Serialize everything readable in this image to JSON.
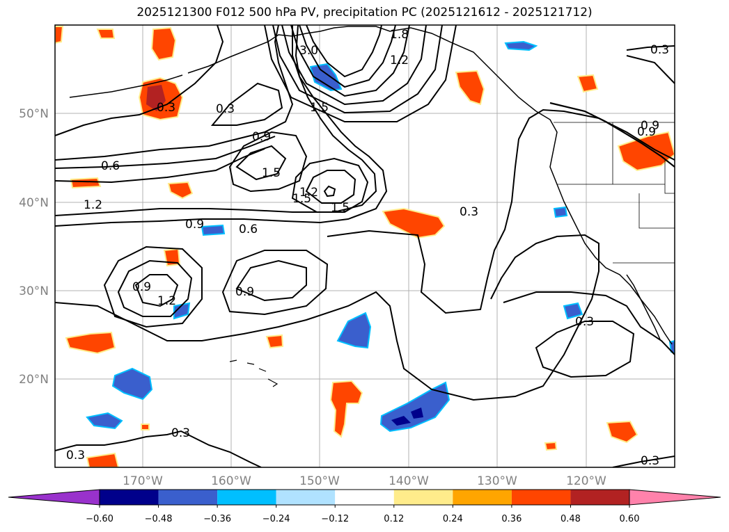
{
  "title": "2025121300 F012 500 hPa PV, precipitation PC (2025121612 - 2025121712)",
  "map": {
    "lat_labels": [
      "50°N",
      "40°N",
      "30°N",
      "20°N"
    ],
    "lon_labels": [
      "170°W",
      "160°W",
      "150°W",
      "140°W",
      "130°W",
      "120°W"
    ],
    "contour_labels": [
      "0.3",
      "0.3",
      "1.5",
      "1.5",
      "1.5",
      "1.5",
      "0.9",
      "0.9",
      "0.9",
      "0.9",
      "0.6",
      "0.6",
      "1.2",
      "1.2",
      "1.2",
      "0.3",
      "0.3",
      "0.3",
      "0.3",
      "0.3",
      "0.3",
      "0.9",
      "0.9",
      "3.0",
      "1.2",
      "1.8"
    ]
  },
  "colorbar": {
    "ticks": [
      "−0.60",
      "−0.48",
      "−0.36",
      "−0.24",
      "−0.12",
      "0.12",
      "0.24",
      "0.36",
      "0.48",
      "0.60"
    ],
    "colors": [
      "#9932cc",
      "#00008b",
      "#3a5fcd",
      "#00bfff",
      "#b0e2ff",
      "#ffffff",
      "#ffec8b",
      "#ffa500",
      "#ff4500",
      "#b22222",
      "#ff82ab"
    ]
  },
  "colors": {
    "grid": "#b0b0b0",
    "contour": "#000000",
    "neg_light": "#b0e2ff",
    "neg_mid": "#00bfff",
    "neg_strong": "#3a5fcd",
    "neg_max": "#00008b",
    "pos_light": "#ffec8b",
    "pos_mid": "#ffa500",
    "pos_strong": "#ff4500",
    "pos_max": "#b22222"
  }
}
